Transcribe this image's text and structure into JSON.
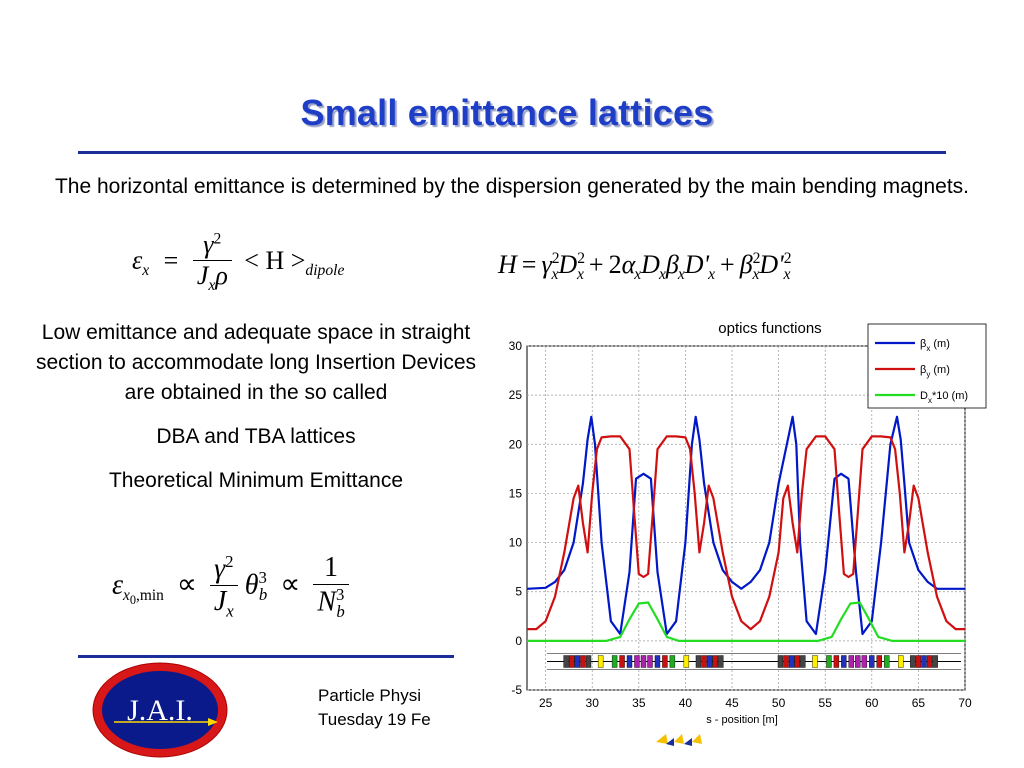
{
  "slide": {
    "title": "Small emittance lattices",
    "intro": "The horizontal emittance is determined by the dispersion generated by the main bending magnets.",
    "left_text": {
      "paragraph1": "Low emittance and adequate space in straight section to accommodate long Insertion Devices are obtained in the so called",
      "paragraph2": "DBA and TBA lattices",
      "paragraph3": "Theoretical Minimum Emittance"
    },
    "footer": {
      "line1": "Particle Physi",
      "line2": "Tuesday 19 Fe"
    },
    "logo_text": "J.A.I."
  },
  "equations": {
    "emittance": {
      "lhs": "ε",
      "lhs_sub": "x",
      "eq": "=",
      "num": "γ",
      "num_sup": "2",
      "den": "J",
      "den_sub": "x",
      "den_rho": "ρ",
      "rhs": "< H >",
      "rhs_sub": "dipole"
    },
    "h_function": {
      "text_parts": [
        "H",
        "=",
        "γ",
        "2",
        "x",
        "D",
        "2",
        "x",
        "+",
        "2",
        "α",
        "x",
        "D",
        "x",
        "β",
        "x",
        "D'",
        "x",
        "+",
        "β",
        "2",
        "x",
        "D'",
        "2",
        "x"
      ]
    },
    "tme": {
      "lhs": "ε",
      "lhs_sub": "x",
      "lhs_sub0": "0",
      "lhs_sub_min": ",min",
      "prop1": "∝",
      "num1": "γ",
      "num1_sup": "2",
      "den1": "J",
      "den1_sub": "x",
      "theta": "θ",
      "theta_sup": "3",
      "theta_sub": "b",
      "prop2": "∝",
      "num2": "1",
      "den2": "N",
      "den2_sup": "3",
      "den2_sub": "b"
    }
  },
  "chart_data": {
    "type": "line",
    "title": "optics functions",
    "xlabel": "s - position [m]",
    "ylabel": "",
    "xlim": [
      23,
      70
    ],
    "ylim": [
      -5,
      30
    ],
    "x_ticks": [
      "25",
      "30",
      "35",
      "40",
      "45",
      "50",
      "55",
      "60",
      "65",
      "70"
    ],
    "y_ticks": [
      "-5",
      "0",
      "5",
      "10",
      "15",
      "20",
      "25",
      "30"
    ],
    "grid": true,
    "legend_position": "top-right",
    "series": [
      {
        "name": "βx (m)",
        "legend_main": "β",
        "legend_sub": "x",
        "legend_rest": " (m)",
        "color": "#0018c8",
        "x": [
          23,
          25,
          26,
          27,
          28,
          29,
          29.5,
          29.9,
          30.3,
          31,
          32,
          33,
          34,
          34.7,
          35.5,
          36.3,
          37,
          38,
          39,
          40,
          40.7,
          41.1,
          41.5,
          42,
          43,
          44,
          45,
          46,
          47,
          48,
          49,
          50,
          51,
          51.5,
          51.9,
          52.3,
          53,
          54,
          55,
          56,
          56.7,
          57.5,
          58.3,
          59,
          60,
          61,
          62,
          62.7,
          63.1,
          63.5,
          64,
          65,
          66,
          67,
          68,
          70
        ],
        "values": [
          5.3,
          5.4,
          6.0,
          7.2,
          10.0,
          16.0,
          20.5,
          22.8,
          20.0,
          10.0,
          2.0,
          0.7,
          7.0,
          16.5,
          17.0,
          16.5,
          7.0,
          0.7,
          2.0,
          10.0,
          20.0,
          22.8,
          20.5,
          16.0,
          10.0,
          7.2,
          6.0,
          5.3,
          6.0,
          7.2,
          10.0,
          16.0,
          20.5,
          22.8,
          20.0,
          10.0,
          2.0,
          0.7,
          7.0,
          16.5,
          17.0,
          16.5,
          7.0,
          0.7,
          2.0,
          10.0,
          20.0,
          22.8,
          20.5,
          16.0,
          10.0,
          7.2,
          6.0,
          5.3,
          5.3,
          5.3
        ]
      },
      {
        "name": "βy (m)",
        "legend_main": "β",
        "legend_sub": "y",
        "legend_rest": " (m)",
        "color": "#d01010",
        "x": [
          23,
          24,
          25,
          26,
          27,
          28,
          28.5,
          29,
          29.5,
          30,
          30.5,
          31,
          32,
          33,
          34,
          34.5,
          35,
          35.5,
          36,
          36.5,
          37,
          38,
          39,
          40,
          40.5,
          41,
          41.5,
          42,
          42.5,
          43,
          44,
          45,
          46,
          47,
          48,
          49,
          50,
          50.5,
          51,
          51.5,
          52,
          52.5,
          53,
          54,
          55,
          56,
          56.5,
          57,
          57.5,
          58,
          58.5,
          59,
          60,
          61,
          62,
          62.5,
          63,
          63.5,
          64,
          64.5,
          65,
          66,
          67,
          68,
          69,
          70
        ],
        "values": [
          1.2,
          1.2,
          2.0,
          4.5,
          9.0,
          14.5,
          15.8,
          12.0,
          9.0,
          15.0,
          19.5,
          20.7,
          20.8,
          20.8,
          19.5,
          13.0,
          6.8,
          6.5,
          6.8,
          13.0,
          19.5,
          20.8,
          20.8,
          20.7,
          19.5,
          15.0,
          9.0,
          12.0,
          15.8,
          14.5,
          9.0,
          4.5,
          2.0,
          1.2,
          2.0,
          4.5,
          9.0,
          14.5,
          15.8,
          12.0,
          9.0,
          15.0,
          19.5,
          20.8,
          20.8,
          19.5,
          13.0,
          6.8,
          6.5,
          6.8,
          13.0,
          19.5,
          20.8,
          20.8,
          20.7,
          19.5,
          15.0,
          9.0,
          12.0,
          15.8,
          14.5,
          9.0,
          4.5,
          2.0,
          1.2,
          1.2
        ]
      },
      {
        "name": "Dx*10 (m)",
        "legend_main": "D",
        "legend_sub": "x",
        "legend_rest": "*10 (m)",
        "color": "#22dd22",
        "x": [
          23,
          31.5,
          33,
          34,
          35,
          36,
          37,
          38,
          39.3,
          54.2,
          55.7,
          56.7,
          57.7,
          58.7,
          59.7,
          60.7,
          62.2,
          70
        ],
        "values": [
          0,
          0,
          0.4,
          2.2,
          3.8,
          3.9,
          2.2,
          0.4,
          0,
          0,
          0.4,
          2.2,
          3.8,
          3.9,
          2.2,
          0.4,
          0,
          0
        ]
      }
    ]
  }
}
